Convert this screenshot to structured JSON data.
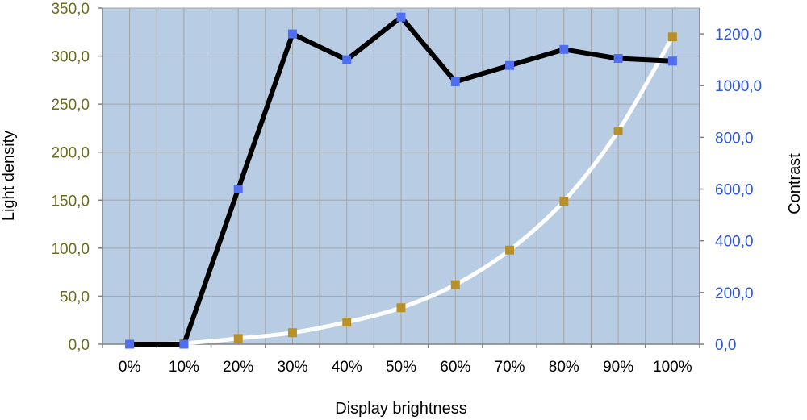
{
  "chart_data": {
    "type": "line",
    "title": "",
    "xlabel": "Display brightness",
    "ylabel_left": "Light density",
    "ylabel_right": "Contrast",
    "categories": [
      "0%",
      "10%",
      "20%",
      "30%",
      "40%",
      "50%",
      "60%",
      "70%",
      "80%",
      "90%",
      "100%"
    ],
    "y_left": {
      "range": [
        0,
        350
      ],
      "ticks": [
        "0,0",
        "50,0",
        "100,0",
        "150,0",
        "200,0",
        "250,0",
        "300,0",
        "350,0"
      ]
    },
    "y_right": {
      "range": [
        0,
        1300
      ],
      "ticks": [
        "0,0",
        "200,0",
        "400,0",
        "600,0",
        "800,0",
        "1000,0",
        "1200,0"
      ]
    },
    "grid": true,
    "legend": "none",
    "series": [
      {
        "axis": "right",
        "color": "#000000",
        "marker_color": "#4f6ff0",
        "values": [
          0,
          0,
          600,
          1200,
          1100,
          1265,
          1015,
          1078,
          1140,
          1105,
          1095
        ]
      },
      {
        "axis": "left",
        "color": "#ffffff",
        "marker_color": "#b8902a",
        "smooth": true,
        "values": [
          0,
          1,
          6,
          12,
          23,
          38,
          62,
          98,
          149,
          222,
          320
        ]
      }
    ],
    "colors": {
      "plot_background": "#b8cce4",
      "grid": "#a4a4a4",
      "left_tick_text": "#6b6b1e",
      "right_tick_text": "#2f56d6"
    }
  }
}
